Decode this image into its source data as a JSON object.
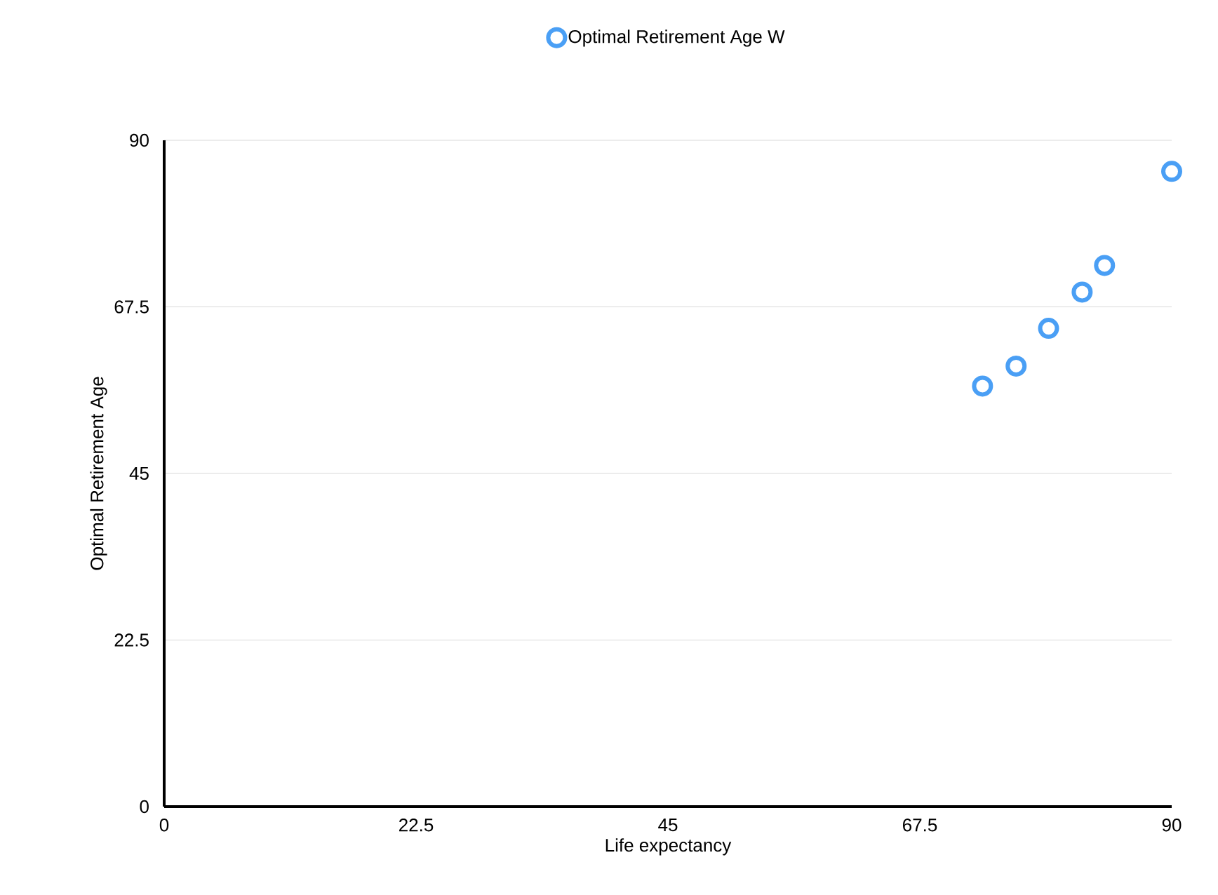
{
  "chart_data": {
    "type": "scatter",
    "xlabel": "Life expectancy",
    "ylabel": "Optimal Retirement Age",
    "series": [
      {
        "name": "Optimal Retirement Age W",
        "color": "#4a9ff5",
        "x": [
          73.1,
          76.1,
          79.0,
          82.0,
          84.0,
          90.0
        ],
        "values": [
          56.8,
          59.5,
          64.6,
          69.5,
          73.1,
          85.8
        ]
      }
    ],
    "xlim": [
      0,
      90
    ],
    "ylim": [
      0,
      90
    ],
    "xticks": [
      0,
      22.5,
      45,
      67.5,
      90
    ],
    "yticks": [
      0,
      22.5,
      45,
      67.5,
      90
    ],
    "grid": "y",
    "legend": "top",
    "marker": "circle"
  }
}
